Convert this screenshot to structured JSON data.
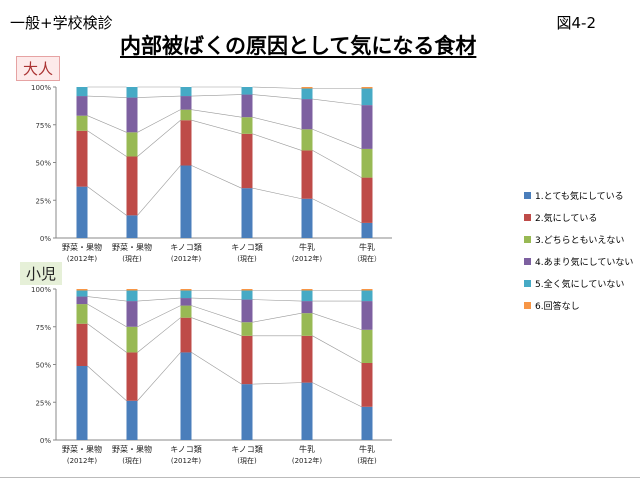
{
  "header": {
    "left": "一般+学校検診",
    "right": "図4-2",
    "title": "内部被ばくの原因として気になる食材"
  },
  "colors": [
    "#4a7ebb",
    "#be4b48",
    "#98b954",
    "#7d60a0",
    "#46aac5",
    "#f79646"
  ],
  "legend": [
    "1.とても気にしている",
    "2.気にしている",
    "3.どちらともいえない",
    "4.あまり気にしていない",
    "5.全く気にしていない",
    "6.回答なし"
  ],
  "chart_data": [
    {
      "type": "bar",
      "stacked": true,
      "group": "大人",
      "categories": [
        [
          "野菜・果物",
          "(2012年)"
        ],
        [
          "野菜・果物",
          "(現在)"
        ],
        [
          "キノコ類",
          "(2012年)"
        ],
        [
          "キノコ類",
          "(現在)"
        ],
        [
          "牛乳",
          "(2012年)"
        ],
        [
          "牛乳",
          "（現在）"
        ]
      ],
      "yticks": [
        "0%",
        "25%",
        "50%",
        "75%",
        "100%"
      ],
      "ylim": [
        0,
        100
      ],
      "series": [
        {
          "name": "1.とても気にしている",
          "values": [
            34,
            15,
            48,
            33,
            26,
            10
          ]
        },
        {
          "name": "2.気にしている",
          "values": [
            37,
            39,
            30,
            36,
            32,
            30
          ]
        },
        {
          "name": "3.どちらともいえない",
          "values": [
            10,
            16,
            7,
            11,
            14,
            19
          ]
        },
        {
          "name": "4.あまり気にしていない",
          "values": [
            13,
            23,
            9,
            15,
            20,
            29
          ]
        },
        {
          "name": "5.全く気にしていない",
          "values": [
            6,
            7,
            6,
            5,
            7,
            11
          ]
        },
        {
          "name": "6.回答なし",
          "values": [
            0,
            0,
            0,
            0,
            1,
            1
          ]
        }
      ]
    },
    {
      "type": "bar",
      "stacked": true,
      "group": "小児",
      "categories": [
        [
          "野菜・果物",
          "(2012年)"
        ],
        [
          "野菜・果物",
          "(現在)"
        ],
        [
          "キノコ類",
          "(2012年)"
        ],
        [
          "キノコ類",
          "(現在)"
        ],
        [
          "牛乳",
          "(2012年)"
        ],
        [
          "牛乳",
          "(現在)"
        ]
      ],
      "yticks": [
        "0%",
        "25%",
        "50%",
        "75%",
        "100%"
      ],
      "ylim": [
        0,
        100
      ],
      "series": [
        {
          "name": "1.とても気にしている",
          "values": [
            49,
            26,
            58,
            37,
            38,
            22
          ]
        },
        {
          "name": "2.気にしている",
          "values": [
            28,
            32,
            23,
            32,
            31,
            29
          ]
        },
        {
          "name": "3.どちらともいえない",
          "values": [
            13,
            17,
            8,
            9,
            15,
            22
          ]
        },
        {
          "name": "4.あまり気にしていない",
          "values": [
            5,
            17,
            5,
            15,
            8,
            19
          ]
        },
        {
          "name": "5.全く気にしていない",
          "values": [
            4,
            7,
            5,
            6,
            7,
            7
          ]
        },
        {
          "name": "6.回答なし",
          "values": [
            1,
            1,
            1,
            1,
            1,
            1
          ]
        }
      ]
    }
  ]
}
